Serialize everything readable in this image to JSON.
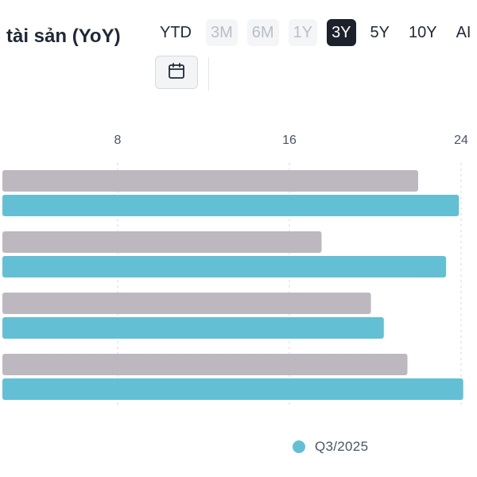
{
  "header": {
    "title": "tài sản (YoY)"
  },
  "range_tabs": [
    {
      "label": "YTD",
      "state": "normal"
    },
    {
      "label": "3M",
      "state": "disabled"
    },
    {
      "label": "6M",
      "state": "disabled"
    },
    {
      "label": "1Y",
      "state": "disabled"
    },
    {
      "label": "3Y",
      "state": "active"
    },
    {
      "label": "5Y",
      "state": "normal"
    },
    {
      "label": "10Y",
      "state": "normal"
    },
    {
      "label": "AI",
      "state": "normal"
    }
  ],
  "icons": {
    "calendar": "calendar-icon"
  },
  "colors": {
    "prior_series": "#bdb8bf",
    "current_series": "#63bfd4",
    "active_tab_bg": "#1c212b"
  },
  "chart_data": {
    "type": "bar",
    "orientation": "horizontal",
    "x_ticks": [
      "8",
      "16",
      "24"
    ],
    "xlim": [
      3,
      24
    ],
    "grid": true,
    "legend_position": "bottom",
    "series": [
      {
        "values": [
          22,
          17.5,
          19.8,
          21.5
        ]
      },
      {
        "name": "Q3/2025",
        "values": [
          23.9,
          23.3,
          20.4,
          24.1
        ]
      }
    ]
  },
  "legend": {
    "label": "Q3/2025"
  }
}
